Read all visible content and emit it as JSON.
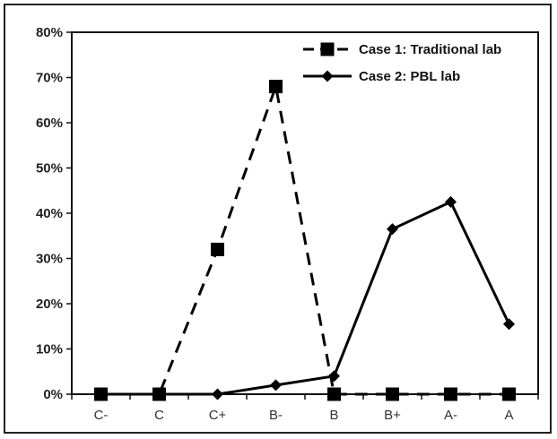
{
  "chart_data": {
    "type": "line",
    "title": "",
    "xlabel": "",
    "ylabel": "",
    "categories": [
      "C-",
      "C",
      "C+",
      "B-",
      "B",
      "B+",
      "A-",
      "A"
    ],
    "y_ticks": [
      "0%",
      "10%",
      "20%",
      "30%",
      "40%",
      "50%",
      "60%",
      "70%",
      "80%"
    ],
    "ylim": [
      0,
      80
    ],
    "grid": false,
    "legend_position": "top-right",
    "series": [
      {
        "name": "Case 1: Traditional lab",
        "values": [
          0,
          0,
          32,
          68,
          0,
          0,
          0,
          0
        ],
        "line_style": "dashed",
        "marker": "square",
        "color": "#000000"
      },
      {
        "name": "Case 2: PBL lab",
        "values": [
          0,
          0,
          0,
          2,
          4,
          36.5,
          42.5,
          15.5
        ],
        "line_style": "solid",
        "marker": "diamond",
        "color": "#000000"
      }
    ]
  }
}
